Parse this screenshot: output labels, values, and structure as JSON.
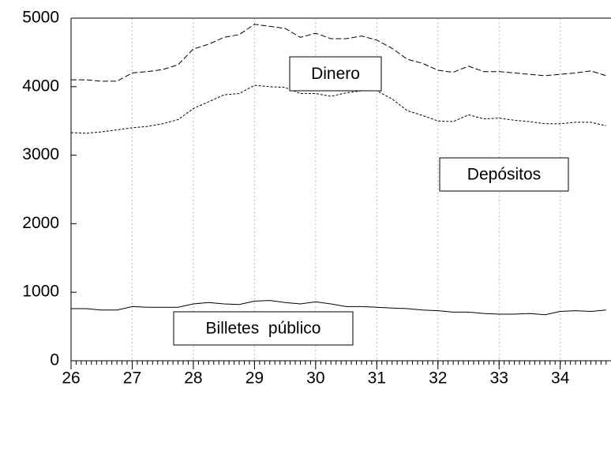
{
  "chart_data": {
    "type": "line",
    "x": [
      26,
      26.25,
      26.5,
      26.75,
      27,
      27.25,
      27.5,
      27.75,
      28,
      28.25,
      28.5,
      28.75,
      29,
      29.25,
      29.5,
      29.75,
      30,
      30.25,
      30.5,
      30.75,
      31,
      31.25,
      31.5,
      31.75,
      32,
      32.25,
      32.5,
      32.75,
      33,
      33.25,
      33.5,
      33.75,
      34,
      34.25,
      34.5,
      34.75
    ],
    "series": [
      {
        "name": "Dinero",
        "color": "#000000",
        "dash": "long",
        "values": [
          4100,
          4100,
          4080,
          4080,
          4200,
          4220,
          4250,
          4320,
          4550,
          4620,
          4720,
          4760,
          4910,
          4880,
          4850,
          4720,
          4780,
          4700,
          4700,
          4740,
          4680,
          4560,
          4400,
          4340,
          4240,
          4210,
          4300,
          4220,
          4220,
          4200,
          4180,
          4160,
          4180,
          4200,
          4230,
          4160
        ]
      },
      {
        "name": "Depósitos",
        "color": "#000000",
        "dash": "short",
        "values": [
          3330,
          3320,
          3340,
          3370,
          3400,
          3420,
          3460,
          3520,
          3680,
          3780,
          3880,
          3900,
          4020,
          4000,
          3990,
          3900,
          3900,
          3860,
          3910,
          3940,
          3940,
          3820,
          3650,
          3580,
          3500,
          3490,
          3590,
          3530,
          3540,
          3510,
          3490,
          3460,
          3460,
          3480,
          3480,
          3430
        ]
      },
      {
        "name": "Billetes  público",
        "color": "#000000",
        "dash": "solid",
        "values": [
          760,
          760,
          740,
          740,
          790,
          780,
          780,
          780,
          830,
          850,
          830,
          820,
          870,
          880,
          850,
          830,
          860,
          830,
          790,
          790,
          780,
          770,
          760,
          740,
          730,
          710,
          710,
          690,
          680,
          680,
          690,
          670,
          720,
          730,
          720,
          740
        ]
      }
    ],
    "xlim": [
      26,
      34.83
    ],
    "xticks": [
      26,
      27,
      28,
      29,
      30,
      31,
      32,
      33,
      34
    ],
    "ylim": [
      0,
      5000
    ],
    "yticks": [
      0,
      1000,
      2000,
      3000,
      4000,
      5000
    ],
    "grid": true
  }
}
